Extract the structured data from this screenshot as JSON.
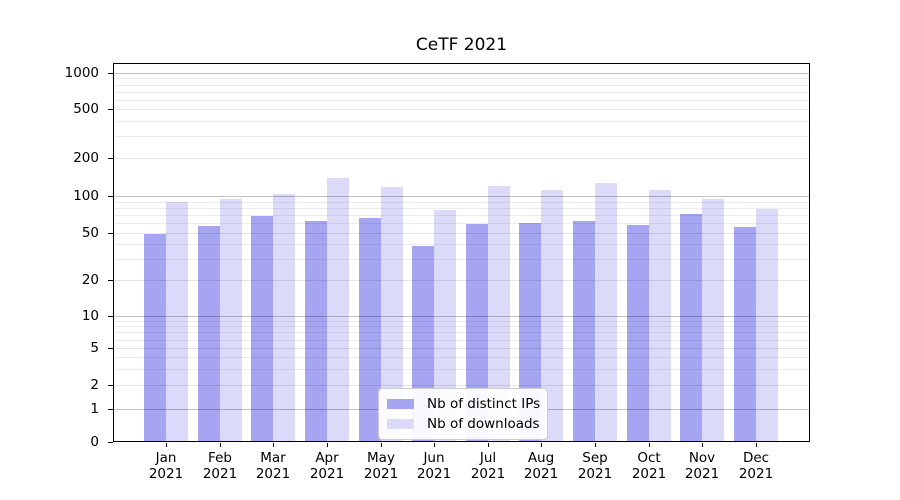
{
  "chart_data": {
    "type": "bar",
    "title": "CeTF 2021",
    "x_year": "2021",
    "categories": [
      "Jan",
      "Feb",
      "Mar",
      "Apr",
      "May",
      "Jun",
      "Jul",
      "Aug",
      "Sep",
      "Oct",
      "Nov",
      "Dec"
    ],
    "series": [
      {
        "name": "Nb of distinct IPs",
        "color": "#a5a5f2",
        "values": [
          49,
          57,
          69,
          63,
          66,
          39,
          59,
          60,
          63,
          58,
          71,
          56
        ]
      },
      {
        "name": "Nb of downloads",
        "color": "#dbdbf9",
        "values": [
          89,
          95,
          104,
          138,
          117,
          77,
          121,
          111,
          127,
          111,
          94,
          78
        ]
      }
    ],
    "y_ticks": [
      0,
      1,
      2,
      5,
      10,
      20,
      50,
      100,
      200,
      500,
      1000
    ],
    "y_minor_ticks": [
      3,
      4,
      6,
      7,
      8,
      9,
      30,
      40,
      60,
      70,
      80,
      90,
      300,
      400,
      600,
      700,
      800,
      900
    ],
    "y_scale": "log-like with 1-2-5 ticks and zero baseline",
    "ylim": [
      0,
      1000
    ],
    "xlabel": "",
    "ylabel": "",
    "grid": true,
    "legend_position": "lower center inside plot"
  },
  "colors": {
    "bar_distinct_ips": "#a5a5f2",
    "bar_downloads": "#dbdbf9",
    "grid_major": "rgba(0,0,0,0.24)",
    "grid_mid": "rgba(0,0,0,0.10)",
    "grid_minor": "rgba(0,0,0,0.07)",
    "axis": "#000000",
    "background": "#ffffff"
  }
}
